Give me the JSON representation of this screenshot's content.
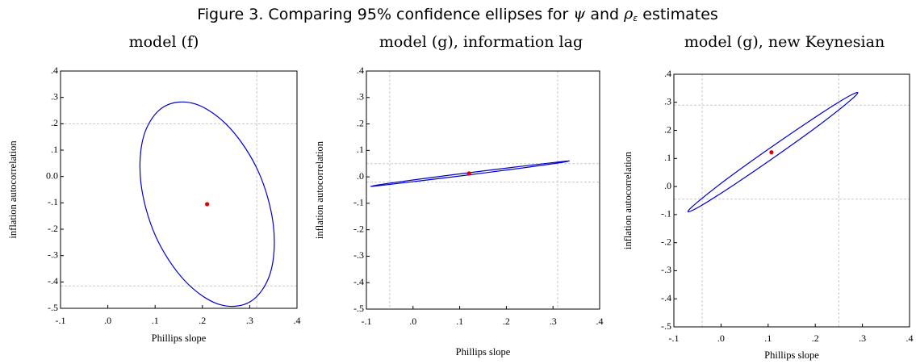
{
  "title": [
    "Figure 3. Comparing 95% confidence ellipses for ",
    "ψ",
    " and ",
    "ρ",
    "ε",
    " estimates"
  ],
  "chart_data": [
    {
      "type": "ellipse",
      "title": "model (f)",
      "xlabel": "Phillips slope",
      "ylabel": "inflation autocorrelation",
      "xlim": [
        -0.1,
        0.4
      ],
      "ylim": [
        -0.5,
        0.4
      ],
      "xticks": [
        {
          "value": -0.1,
          "label": "-.1"
        },
        {
          "value": 0,
          "label": ".0"
        },
        {
          "value": 0.1,
          "label": ".1"
        },
        {
          "value": 0.2,
          "label": ".2"
        },
        {
          "value": 0.3,
          "label": ".3"
        },
        {
          "value": 0.4,
          "label": ".4"
        }
      ],
      "yticks": [
        {
          "value": 0.4,
          "label": ".4"
        },
        {
          "value": 0.3,
          "label": ".3"
        },
        {
          "value": 0.2,
          "label": ".2"
        },
        {
          "value": 0.1,
          "label": ".1"
        },
        {
          "value": 0,
          "label": "0.0"
        },
        {
          "value": -0.1,
          "label": "-.1"
        },
        {
          "value": -0.2,
          "label": "-.2"
        },
        {
          "value": -0.3,
          "label": "-.3"
        },
        {
          "value": -0.4,
          "label": "-.4"
        },
        {
          "value": -0.5,
          "label": "-.5"
        }
      ],
      "reference_lines": {
        "x": [
          0.315
        ],
        "y": [
          0.2,
          -0.415
        ]
      },
      "ellipse": {
        "color": "#0000cc",
        "x": [
          0.35,
          0.319,
          0.258,
          0.185,
          0.118,
          0.076,
          0.07,
          0.101,
          0.162,
          0.235,
          0.302,
          0.344
        ],
        "y": [
          -0.185,
          0.016,
          0.184,
          0.275,
          0.264,
          0.154,
          -0.025,
          -0.226,
          -0.394,
          -0.485,
          -0.474,
          -0.364
        ]
      },
      "estimate": {
        "color": "#e00000",
        "x": 0.21,
        "y": -0.105
      }
    },
    {
      "type": "ellipse",
      "title": "model (g), information lag",
      "xlabel": "Phillips slope",
      "ylabel": "inflation autocorrelation",
      "xlim": [
        -0.1,
        0.4
      ],
      "ylim": [
        -0.5,
        0.4
      ],
      "xticks": [
        {
          "value": -0.1,
          "label": "-.1"
        },
        {
          "value": 0,
          "label": ".0"
        },
        {
          "value": 0.1,
          "label": ".1"
        },
        {
          "value": 0.2,
          "label": ".2"
        },
        {
          "value": 0.3,
          "label": ".3"
        },
        {
          "value": 0.4,
          "label": ".4"
        }
      ],
      "yticks": [
        {
          "value": 0.4,
          "label": ".4"
        },
        {
          "value": 0.3,
          "label": ".3"
        },
        {
          "value": 0.2,
          "label": ".2"
        },
        {
          "value": 0.1,
          "label": ".1"
        },
        {
          "value": 0,
          "label": ".0"
        },
        {
          "value": -0.1,
          "label": "-.1"
        },
        {
          "value": -0.2,
          "label": "-.2"
        },
        {
          "value": -0.3,
          "label": "-.3"
        },
        {
          "value": -0.4,
          "label": "-.4"
        },
        {
          "value": -0.5,
          "label": "-.5"
        }
      ],
      "reference_lines": {
        "x": [
          -0.05,
          0.31
        ],
        "y": [
          0.05,
          -0.02
        ]
      },
      "ellipse": {
        "color": "#0000cc",
        "x": [
          0.335,
          0.306,
          0.228,
          0.122,
          0.016,
          -0.062,
          -0.091,
          -0.062,
          0.016,
          0.122,
          0.228,
          0.306
        ],
        "y": [
          0.06,
          0.055,
          0.039,
          0.016,
          -0.008,
          -0.027,
          -0.036,
          -0.031,
          -0.015,
          0.008,
          0.032,
          0.051
        ]
      },
      "estimate": {
        "color": "#e00000",
        "x": 0.12,
        "y": 0.013
      }
    },
    {
      "type": "ellipse",
      "title": "model (g), new Keynesian",
      "xlabel": "Phillips slope",
      "ylabel": "inflation autocorrelation",
      "xlim": [
        -0.1,
        0.4
      ],
      "ylim": [
        -0.5,
        0.4
      ],
      "xticks": [
        {
          "value": -0.1,
          "label": "-.1"
        },
        {
          "value": 0,
          "label": ".0"
        },
        {
          "value": 0.1,
          "label": ".1"
        },
        {
          "value": 0.2,
          "label": ".2"
        },
        {
          "value": 0.3,
          "label": ".3"
        },
        {
          "value": 0.4,
          "label": ".4"
        }
      ],
      "yticks": [
        {
          "value": 0.4,
          "label": ".4"
        },
        {
          "value": 0.3,
          "label": ".3"
        },
        {
          "value": 0.2,
          "label": ".2"
        },
        {
          "value": 0.1,
          "label": ".1"
        },
        {
          "value": 0,
          "label": ".0"
        },
        {
          "value": -0.1,
          "label": "-.1"
        },
        {
          "value": -0.2,
          "label": "-.2"
        },
        {
          "value": -0.3,
          "label": "-.3"
        },
        {
          "value": -0.4,
          "label": "-.4"
        },
        {
          "value": -0.5,
          "label": "-.5"
        }
      ],
      "reference_lines": {
        "x": [
          -0.04,
          0.25
        ],
        "y": [
          0.29,
          -0.045
        ]
      },
      "ellipse": {
        "color": "#0000cc",
        "x": [
          0.29,
          0.271,
          0.209,
          0.12,
          0.029,
          -0.041,
          -0.07,
          -0.051,
          0.011,
          0.1,
          0.191,
          0.261
        ],
        "y": [
          0.335,
          0.302,
          0.22,
          0.1125,
          0.008,
          -0.067,
          -0.09,
          -0.057,
          0.025,
          0.1325,
          0.237,
          0.312
        ]
      },
      "estimate": {
        "color": "#e00000",
        "x": 0.107,
        "y": 0.122
      }
    }
  ]
}
